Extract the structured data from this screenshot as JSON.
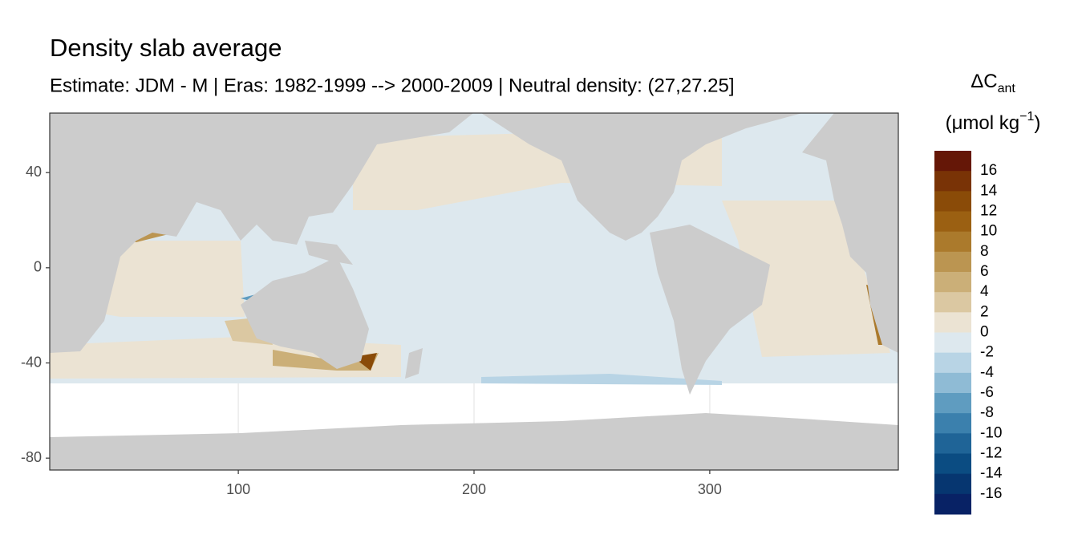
{
  "chart_data": {
    "type": "raster_map",
    "title": "Density slab average",
    "subtitle": "Estimate: JDM - M | Eras: 1982-1999 --> 2000-2009 | Neutral density: (27,27.25]",
    "xlim": [
      20,
      380
    ],
    "ylim": [
      -85,
      65
    ],
    "xticks": [
      100,
      200,
      300
    ],
    "yticks": [
      40,
      0,
      -40,
      -80
    ],
    "grid": true,
    "land_color": "#cccccc",
    "legend": {
      "title": "ΔC",
      "title_sub": "ant",
      "unit": "(μmol kg",
      "unit_sup": "−1",
      "unit_end": ")",
      "limits": [
        -18,
        18
      ],
      "breaks": [
        16,
        14,
        12,
        10,
        8,
        6,
        4,
        2,
        0,
        -2,
        -4,
        -6,
        -8,
        -10,
        -12,
        -14,
        -16
      ],
      "colors": [
        "#651707",
        "#793306",
        "#8a4b08",
        "#9b6012",
        "#ab7a2c",
        "#bb9551",
        "#cbaf78",
        "#dbc8a2",
        "#ebe3d3",
        "#dde8ee",
        "#b8d4e5",
        "#8fbbd5",
        "#5f9cc0",
        "#3b80ad",
        "#1f6497",
        "#0b4c82",
        "#063670",
        "#082265"
      ]
    }
  }
}
